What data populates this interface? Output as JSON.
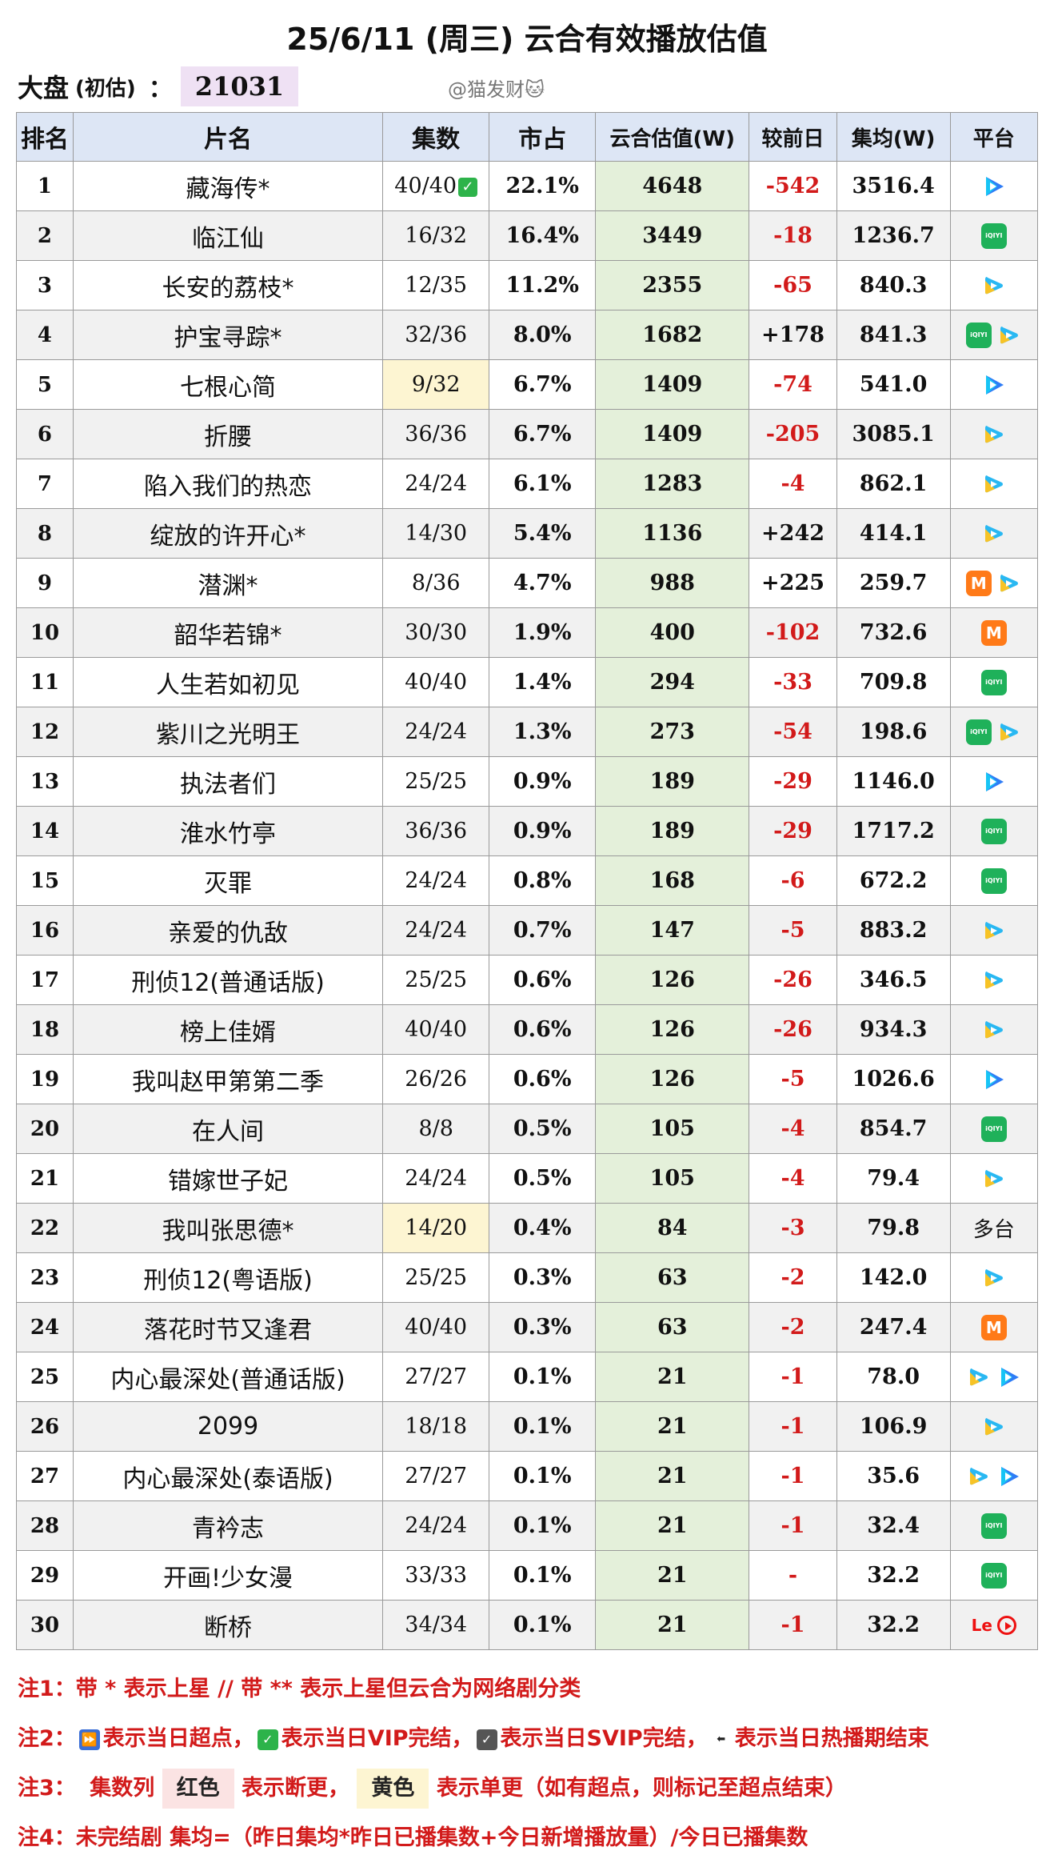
{
  "title": "25/6/11 (周三) 云合有效播放估值",
  "summary": {
    "label": "大盘",
    "sub": "(初估)",
    "colon": "：",
    "value": "21031"
  },
  "credit": "@猫发财🐱",
  "headers": [
    "排名",
    "片名",
    "集数",
    "市占",
    "云合估值(W)",
    "较前日",
    "集均(W)",
    "平台"
  ],
  "rows": [
    {
      "rank": "1",
      "name": "藏海传*",
      "eps": "40/40",
      "share": "22.1%",
      "value": "4648",
      "change": "-542",
      "avg": "3516.4",
      "platforms": [
        "tencent"
      ],
      "check": true
    },
    {
      "rank": "2",
      "name": "临江仙",
      "eps": "16/32",
      "share": "16.4%",
      "value": "3449",
      "change": "-18",
      "avg": "1236.7",
      "platforms": [
        "iqiyi"
      ]
    },
    {
      "rank": "3",
      "name": "长安的荔枝*",
      "eps": "12/35",
      "share": "11.2%",
      "value": "2355",
      "change": "-65",
      "avg": "840.3",
      "platforms": [
        "youku"
      ]
    },
    {
      "rank": "4",
      "name": "护宝寻踪*",
      "eps": "32/36",
      "share": "8.0%",
      "value": "1682",
      "change": "+178",
      "avg": "841.3",
      "platforms": [
        "iqiyi",
        "youku"
      ]
    },
    {
      "rank": "5",
      "name": "七根心简",
      "eps": "9/32",
      "share": "6.7%",
      "value": "1409",
      "change": "-74",
      "avg": "541.0",
      "platforms": [
        "tencent"
      ],
      "eps_highlight": "yellow"
    },
    {
      "rank": "6",
      "name": "折腰",
      "eps": "36/36",
      "share": "6.7%",
      "value": "1409",
      "change": "-205",
      "avg": "3085.1",
      "platforms": [
        "youku"
      ]
    },
    {
      "rank": "7",
      "name": "陷入我们的热恋",
      "eps": "24/24",
      "share": "6.1%",
      "value": "1283",
      "change": "-4",
      "avg": "862.1",
      "platforms": [
        "youku"
      ]
    },
    {
      "rank": "8",
      "name": "绽放的许开心*",
      "eps": "14/30",
      "share": "5.4%",
      "value": "1136",
      "change": "+242",
      "avg": "414.1",
      "platforms": [
        "youku"
      ]
    },
    {
      "rank": "9",
      "name": "潜渊*",
      "eps": "8/36",
      "share": "4.7%",
      "value": "988",
      "change": "+225",
      "avg": "259.7",
      "platforms": [
        "mango",
        "youku"
      ]
    },
    {
      "rank": "10",
      "name": "韶华若锦*",
      "eps": "30/30",
      "share": "1.9%",
      "value": "400",
      "change": "-102",
      "avg": "732.6",
      "platforms": [
        "mango"
      ]
    },
    {
      "rank": "11",
      "name": "人生若如初见",
      "eps": "40/40",
      "share": "1.4%",
      "value": "294",
      "change": "-33",
      "avg": "709.8",
      "platforms": [
        "iqiyi"
      ]
    },
    {
      "rank": "12",
      "name": "紫川之光明王",
      "eps": "24/24",
      "share": "1.3%",
      "value": "273",
      "change": "-54",
      "avg": "198.6",
      "platforms": [
        "iqiyi",
        "youku"
      ]
    },
    {
      "rank": "13",
      "name": "执法者们",
      "eps": "25/25",
      "share": "0.9%",
      "value": "189",
      "change": "-29",
      "avg": "1146.0",
      "platforms": [
        "tencent"
      ]
    },
    {
      "rank": "14",
      "name": "淮水竹亭",
      "eps": "36/36",
      "share": "0.9%",
      "value": "189",
      "change": "-29",
      "avg": "1717.2",
      "platforms": [
        "iqiyi"
      ]
    },
    {
      "rank": "15",
      "name": "灭罪",
      "eps": "24/24",
      "share": "0.8%",
      "value": "168",
      "change": "-6",
      "avg": "672.2",
      "platforms": [
        "iqiyi"
      ]
    },
    {
      "rank": "16",
      "name": "亲爱的仇敌",
      "eps": "24/24",
      "share": "0.7%",
      "value": "147",
      "change": "-5",
      "avg": "883.2",
      "platforms": [
        "youku"
      ]
    },
    {
      "rank": "17",
      "name": "刑侦12(普通话版)",
      "eps": "25/25",
      "share": "0.6%",
      "value": "126",
      "change": "-26",
      "avg": "346.5",
      "platforms": [
        "youku"
      ]
    },
    {
      "rank": "18",
      "name": "榜上佳婿",
      "eps": "40/40",
      "share": "0.6%",
      "value": "126",
      "change": "-26",
      "avg": "934.3",
      "platforms": [
        "youku"
      ]
    },
    {
      "rank": "19",
      "name": "我叫赵甲第第二季",
      "eps": "26/26",
      "share": "0.6%",
      "value": "126",
      "change": "-5",
      "avg": "1026.6",
      "platforms": [
        "tencent"
      ]
    },
    {
      "rank": "20",
      "name": "在人间",
      "eps": "8/8",
      "share": "0.5%",
      "value": "105",
      "change": "-4",
      "avg": "854.7",
      "platforms": [
        "iqiyi"
      ]
    },
    {
      "rank": "21",
      "name": "错嫁世子妃",
      "eps": "24/24",
      "share": "0.5%",
      "value": "105",
      "change": "-4",
      "avg": "79.4",
      "platforms": [
        "youku"
      ]
    },
    {
      "rank": "22",
      "name": "我叫张思德*",
      "eps": "14/20",
      "share": "0.4%",
      "value": "84",
      "change": "-3",
      "avg": "79.8",
      "platforms": [],
      "platform_text": "多台",
      "eps_highlight": "yellow"
    },
    {
      "rank": "23",
      "name": "刑侦12(粤语版)",
      "eps": "25/25",
      "share": "0.3%",
      "value": "63",
      "change": "-2",
      "avg": "142.0",
      "platforms": [
        "youku"
      ]
    },
    {
      "rank": "24",
      "name": "落花时节又逢君",
      "eps": "40/40",
      "share": "0.3%",
      "value": "63",
      "change": "-2",
      "avg": "247.4",
      "platforms": [
        "mango"
      ]
    },
    {
      "rank": "25",
      "name": "内心最深处(普通话版)",
      "eps": "27/27",
      "share": "0.1%",
      "value": "21",
      "change": "-1",
      "avg": "78.0",
      "platforms": [
        "youku",
        "tencent"
      ]
    },
    {
      "rank": "26",
      "name": "2099",
      "eps": "18/18",
      "share": "0.1%",
      "value": "21",
      "change": "-1",
      "avg": "106.9",
      "platforms": [
        "youku"
      ]
    },
    {
      "rank": "27",
      "name": "内心最深处(泰语版)",
      "eps": "27/27",
      "share": "0.1%",
      "value": "21",
      "change": "-1",
      "avg": "35.6",
      "platforms": [
        "youku",
        "tencent"
      ]
    },
    {
      "rank": "28",
      "name": "青衿志",
      "eps": "24/24",
      "share": "0.1%",
      "value": "21",
      "change": "-1",
      "avg": "32.4",
      "platforms": [
        "iqiyi"
      ]
    },
    {
      "rank": "29",
      "name": "开画!少女漫",
      "eps": "33/33",
      "share": "0.1%",
      "value": "21",
      "change": "-",
      "avg": "32.2",
      "platforms": [
        "iqiyi"
      ]
    },
    {
      "rank": "30",
      "name": "断桥",
      "eps": "34/34",
      "share": "0.1%",
      "value": "21",
      "change": "-1",
      "avg": "32.2",
      "platforms": [
        "le",
        "red"
      ]
    }
  ],
  "notes": {
    "n1": "注1：带 * 表示上星 // 带 ** 表示上星但云合为网络剧分类",
    "n2_pre": "注2：",
    "n2_a": "表示当日超点，",
    "n2_b": "表示当日VIP完结，",
    "n2_c": "表示当日SVIP完结，",
    "n2_d": "表示当日热播期结束",
    "n3_pre": "注3：",
    "n3_col": "集数列",
    "n3_red": "红色",
    "n3_mid": "表示断更，",
    "n3_yellow": "黄色",
    "n3_end": "表示单更（如有超点，则标记至超点结束）",
    "n4": "注4：未完结剧 集均=（昨日集均*昨日已播集数+今日新增播放量）/今日已播集数"
  },
  "colors": {
    "header_bg": "#dde6f5",
    "value_bg": "#e4f0da",
    "negative": "#d21a1a",
    "highlight_yellow": "#fdf5d2",
    "summary_bg": "#efe1f4"
  },
  "icons": {
    "tencent": "tencent-video-icon",
    "iqiyi": "iqiyi-icon",
    "youku": "youku-icon",
    "mango": "mango-tv-icon",
    "le": "letv-icon",
    "red": "red-play-icon"
  }
}
